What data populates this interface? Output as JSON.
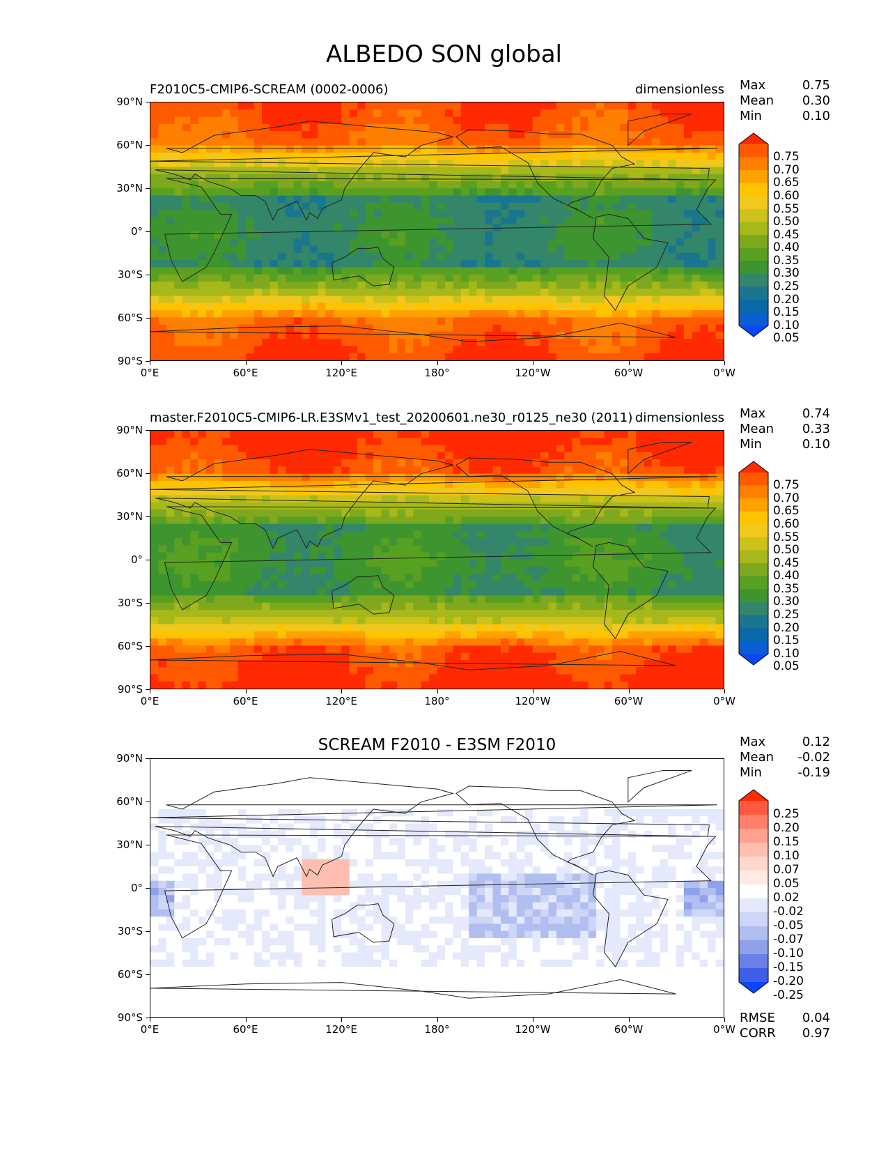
{
  "title": "ALBEDO SON global",
  "lat_ticks": [
    "90°N",
    "60°N",
    "30°N",
    "0°",
    "30°S",
    "60°S",
    "90°S"
  ],
  "lon_ticks": [
    "0°E",
    "60°E",
    "120°E",
    "180°",
    "120°W",
    "60°W",
    "0°W"
  ],
  "panels": [
    {
      "left_title": "F2010C5-CMIP6-SCREAM (0002-0006)",
      "right_title": "dimensionless",
      "stats": {
        "max_label": "Max",
        "max": "0.75",
        "mean_label": "Mean",
        "mean": "0.30",
        "min_label": "Min",
        "min": "0.10"
      },
      "colorbar": {
        "labels": [
          "0.75",
          "0.70",
          "0.65",
          "0.60",
          "0.55",
          "0.50",
          "0.45",
          "0.40",
          "0.35",
          "0.30",
          "0.25",
          "0.20",
          "0.15",
          "0.10",
          "0.05"
        ],
        "colors": [
          "#ff2a00",
          "#ff5a00",
          "#ff7f00",
          "#ffa200",
          "#ffc400",
          "#f2c81d",
          "#cdc21a",
          "#a7b81a",
          "#7ea81d",
          "#58a021",
          "#3e9530",
          "#33866a",
          "#1a768f",
          "#0a6aa8",
          "#0a5fd0",
          "#0a46ff"
        ]
      }
    },
    {
      "left_title": "master.F2010C5-CMIP6-LR.E3SMv1_test_20200601.ne30_r0125_ne30 (2011)",
      "right_title": "dimensionless",
      "stats": {
        "max_label": "Max",
        "max": "0.74",
        "mean_label": "Mean",
        "mean": "0.33",
        "min_label": "Min",
        "min": "0.10"
      },
      "colorbar": {
        "labels": [
          "0.75",
          "0.70",
          "0.65",
          "0.60",
          "0.55",
          "0.50",
          "0.45",
          "0.40",
          "0.35",
          "0.30",
          "0.25",
          "0.20",
          "0.15",
          "0.10",
          "0.05"
        ],
        "colors": [
          "#ff2a00",
          "#ff5a00",
          "#ff7f00",
          "#ffa200",
          "#ffc400",
          "#f2c81d",
          "#cdc21a",
          "#a7b81a",
          "#7ea81d",
          "#58a021",
          "#3e9530",
          "#33866a",
          "#1a768f",
          "#0a6aa8",
          "#0a5fd0",
          "#0a46ff"
        ]
      }
    },
    {
      "center_title": "SCREAM F2010 - E3SM F2010",
      "stats": {
        "max_label": "Max",
        "max": "0.12",
        "mean_label": "Mean",
        "mean": "-0.02",
        "min_label": "Min",
        "min": "-0.19"
      },
      "colorbar": {
        "labels": [
          "0.25",
          "0.20",
          "0.15",
          "0.10",
          "0.07",
          "0.05",
          "0.02",
          "-0.02",
          "-0.05",
          "-0.07",
          "-0.10",
          "-0.15",
          "-0.20",
          "-0.25"
        ],
        "colors": [
          "#ff2a00",
          "#ff5a40",
          "#ff7f6a",
          "#ffa090",
          "#ffbfb0",
          "#ffd8cc",
          "#ffeae4",
          "#ffffff",
          "#e4e9fb",
          "#cdd6f6",
          "#b0bef0",
          "#8fa1ea",
          "#6a80e6",
          "#3f5ee8",
          "#0a46ff"
        ]
      },
      "rmse_label": "RMSE",
      "rmse": "0.04",
      "corr_label": "CORR",
      "corr": "0.97"
    }
  ]
}
